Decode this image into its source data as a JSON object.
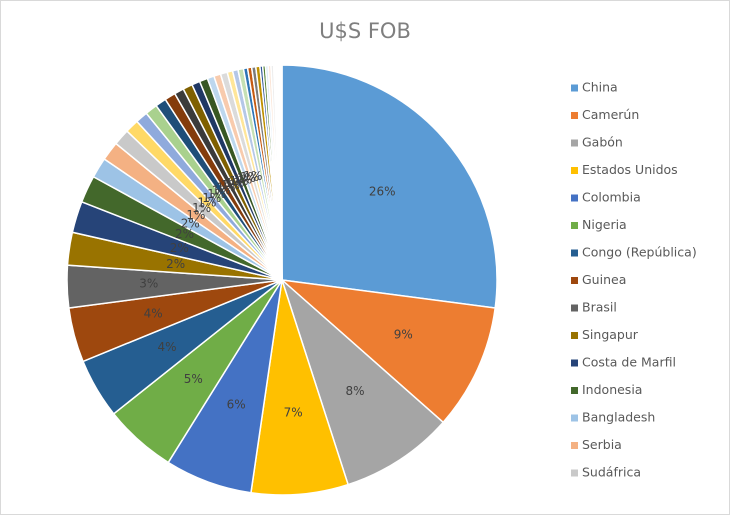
{
  "chart_data": {
    "type": "pie",
    "title": "U$S FOB",
    "categories": [
      "China",
      "Camerún",
      "Gabón",
      "Estados Unidos",
      "Colombia",
      "Nigeria",
      "Congo (República)",
      "Guinea",
      "Brasil",
      "Singapur",
      "Costa de Marfil",
      "Indonesia",
      "Bangladesh",
      "Serbia",
      "Sudáfrica",
      null,
      null,
      null,
      null,
      null,
      null,
      null,
      null,
      null,
      null,
      null,
      null,
      null,
      null,
      null,
      null,
      null,
      null,
      null,
      null,
      null,
      null,
      null,
      null,
      null,
      null,
      null,
      null,
      null,
      null
    ],
    "values": [
      26.4,
      9.2,
      8.3,
      7.1,
      6.4,
      5.3,
      4.4,
      4.0,
      3.1,
      2.4,
      2.3,
      2.0,
      1.5,
      1.4,
      1.2,
      1.0,
      0.9,
      0.9,
      0.8,
      0.8,
      0.7,
      0.7,
      0.6,
      0.6,
      0.5,
      0.5,
      0.5,
      0.4,
      0.4,
      0.4,
      0.3,
      0.3,
      0.3,
      0.3,
      0.2,
      0.2,
      0.2,
      0.2,
      0.2,
      0.1,
      0.1,
      0.1,
      0.1,
      0.1,
      0.1
    ],
    "value_labels": [
      "26%",
      "9%",
      "8%",
      "7%",
      "6%",
      "5%",
      "4%",
      "4%",
      "3%",
      "2%",
      "2%",
      "2%",
      "2%",
      "1%",
      "1%",
      "1%",
      "1%",
      "1%",
      "1%",
      "1%",
      "1%",
      "1%",
      "1%",
      "1%",
      "1%",
      "1%",
      "1%",
      null,
      null,
      null,
      null,
      null,
      null,
      null,
      null,
      null,
      null,
      null,
      null,
      null,
      null,
      null,
      null,
      null,
      null
    ],
    "colors": [
      "#5b9bd5",
      "#ed7d31",
      "#a5a5a5",
      "#ffc000",
      "#4472c4",
      "#70ad47",
      "#255e91",
      "#9e480e",
      "#636363",
      "#997300",
      "#264478",
      "#43682b",
      "#9dc3e6",
      "#f4b183",
      "#c9c9c9",
      "#ffd966",
      "#8faadc",
      "#a9d18e",
      "#1f4e79",
      "#843c0c",
      "#3b3b3b",
      "#7f6000",
      "#203864",
      "#385723",
      "#bdd7ee",
      "#f8cbad",
      "#dbdbdb",
      "#ffe699",
      "#b4c7e7",
      "#c5e0b4",
      "#2e75b6",
      "#c55a11",
      "#7b7b7b",
      "#bf9000",
      "#2f5597",
      "#548235",
      "#deebf7",
      "#fbe5d6",
      "#ededed",
      "#fff2cc",
      "#dae3f3",
      "#e2f0d9",
      "#41719c",
      "#ae5a21",
      "#787878"
    ],
    "legend": "right"
  }
}
